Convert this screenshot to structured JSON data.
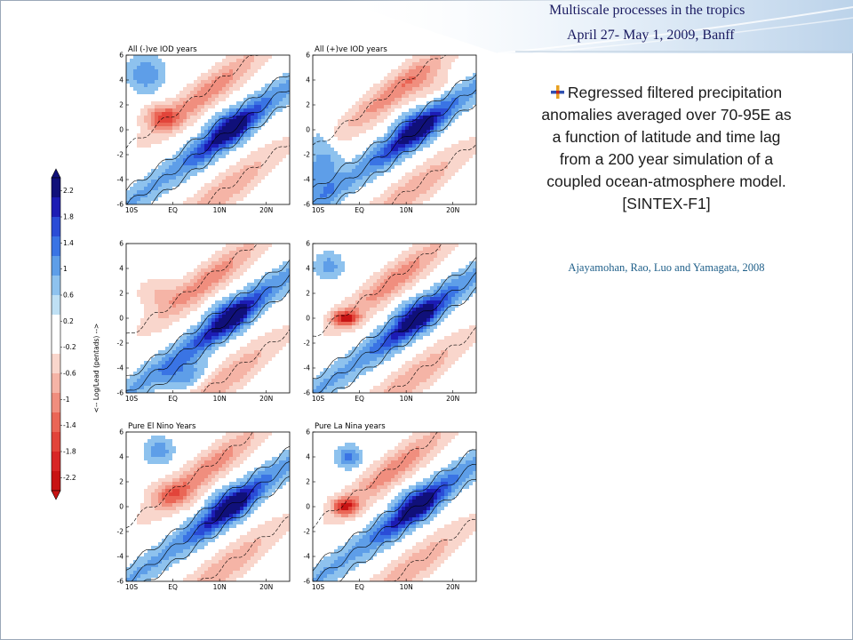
{
  "header": {
    "title": "Multiscale processes in the tropics",
    "date": "April 27- May 1, 2009, Banff"
  },
  "description": {
    "text": "Regressed filtered precipitation anomalies averaged over 70-95E as a function of latitude and time lag from a 200 year simulation of a coupled ocean-atmosphere model. [SINTEX-F1]",
    "bullet_icon": "plus-bullet-icon"
  },
  "citation": "Ajayamohan, Rao, Luo and Yamagata, 2008",
  "colors": {
    "deep_blue": "#1a1aa8",
    "light_blue": "#b8def2",
    "light_red": "#f6c2b8",
    "deep_red": "#d01818",
    "header_gradient": "#cfe2f2"
  },
  "chart_data": [
    {
      "type": "heatmap",
      "title": "All (-)ve IOD years",
      "ylabel": "<-- Log/Lead (pentads) -->",
      "x_ticks": [
        "10S",
        "EQ",
        "10N",
        "20N"
      ],
      "y_ticks": [
        "6",
        "4",
        "2",
        "0",
        "-2",
        "-4",
        "-6"
      ],
      "ylim": [
        -6,
        6
      ]
    },
    {
      "type": "heatmap",
      "title": "All (+)ve IOD years",
      "x_ticks": [
        "10S",
        "EQ",
        "10N",
        "20N"
      ],
      "y_ticks": [
        "6",
        "4",
        "2",
        "0",
        "-2",
        "-4",
        "-6"
      ],
      "ylim": [
        -6,
        6
      ]
    },
    {
      "type": "heatmap",
      "title": "",
      "x_ticks": [
        "10S",
        "EQ",
        "10N",
        "20N"
      ],
      "y_ticks": [
        "6",
        "4",
        "2",
        "0",
        "-2",
        "-4",
        "-6"
      ],
      "ylim": [
        -6,
        6
      ]
    },
    {
      "type": "heatmap",
      "title": "",
      "x_ticks": [
        "10S",
        "EQ",
        "10N",
        "20N"
      ],
      "y_ticks": [
        "6",
        "4",
        "2",
        "0",
        "-2",
        "-4",
        "-6"
      ],
      "ylim": [
        -6,
        6
      ]
    },
    {
      "type": "heatmap",
      "title": "Pure El Nino Years",
      "x_ticks": [
        "10S",
        "EQ",
        "10N",
        "20N"
      ],
      "y_ticks": [
        "6",
        "4",
        "2",
        "0",
        "-2",
        "-4",
        "-6"
      ],
      "ylim": [
        -6,
        6
      ]
    },
    {
      "type": "heatmap",
      "title": "Pure La Nina years",
      "x_ticks": [
        "10S",
        "EQ",
        "10N",
        "20N"
      ],
      "y_ticks": [
        "6",
        "4",
        "2",
        "0",
        "-2",
        "-4",
        "-6"
      ],
      "ylim": [
        -6,
        6
      ]
    }
  ],
  "colorbar": {
    "labels": [
      "2.2",
      "1.8",
      "1.4",
      "1",
      "0.6",
      "0.2",
      "-0.2",
      "-0.6",
      "-1",
      "-1.4",
      "-1.8",
      "-2.2"
    ],
    "colors": [
      "#10107a",
      "#1c1cb4",
      "#2a4cd6",
      "#3a74e4",
      "#5e9ee8",
      "#8ec2ee",
      "#bfe0f4",
      "#ffffff",
      "#ffffff",
      "#f9d6cc",
      "#f5b4a6",
      "#f08e7e",
      "#ea6656",
      "#e2443a",
      "#d82626",
      "#c81414"
    ]
  },
  "ylabel_text": "<-- Log/Lead (pentads) -->"
}
